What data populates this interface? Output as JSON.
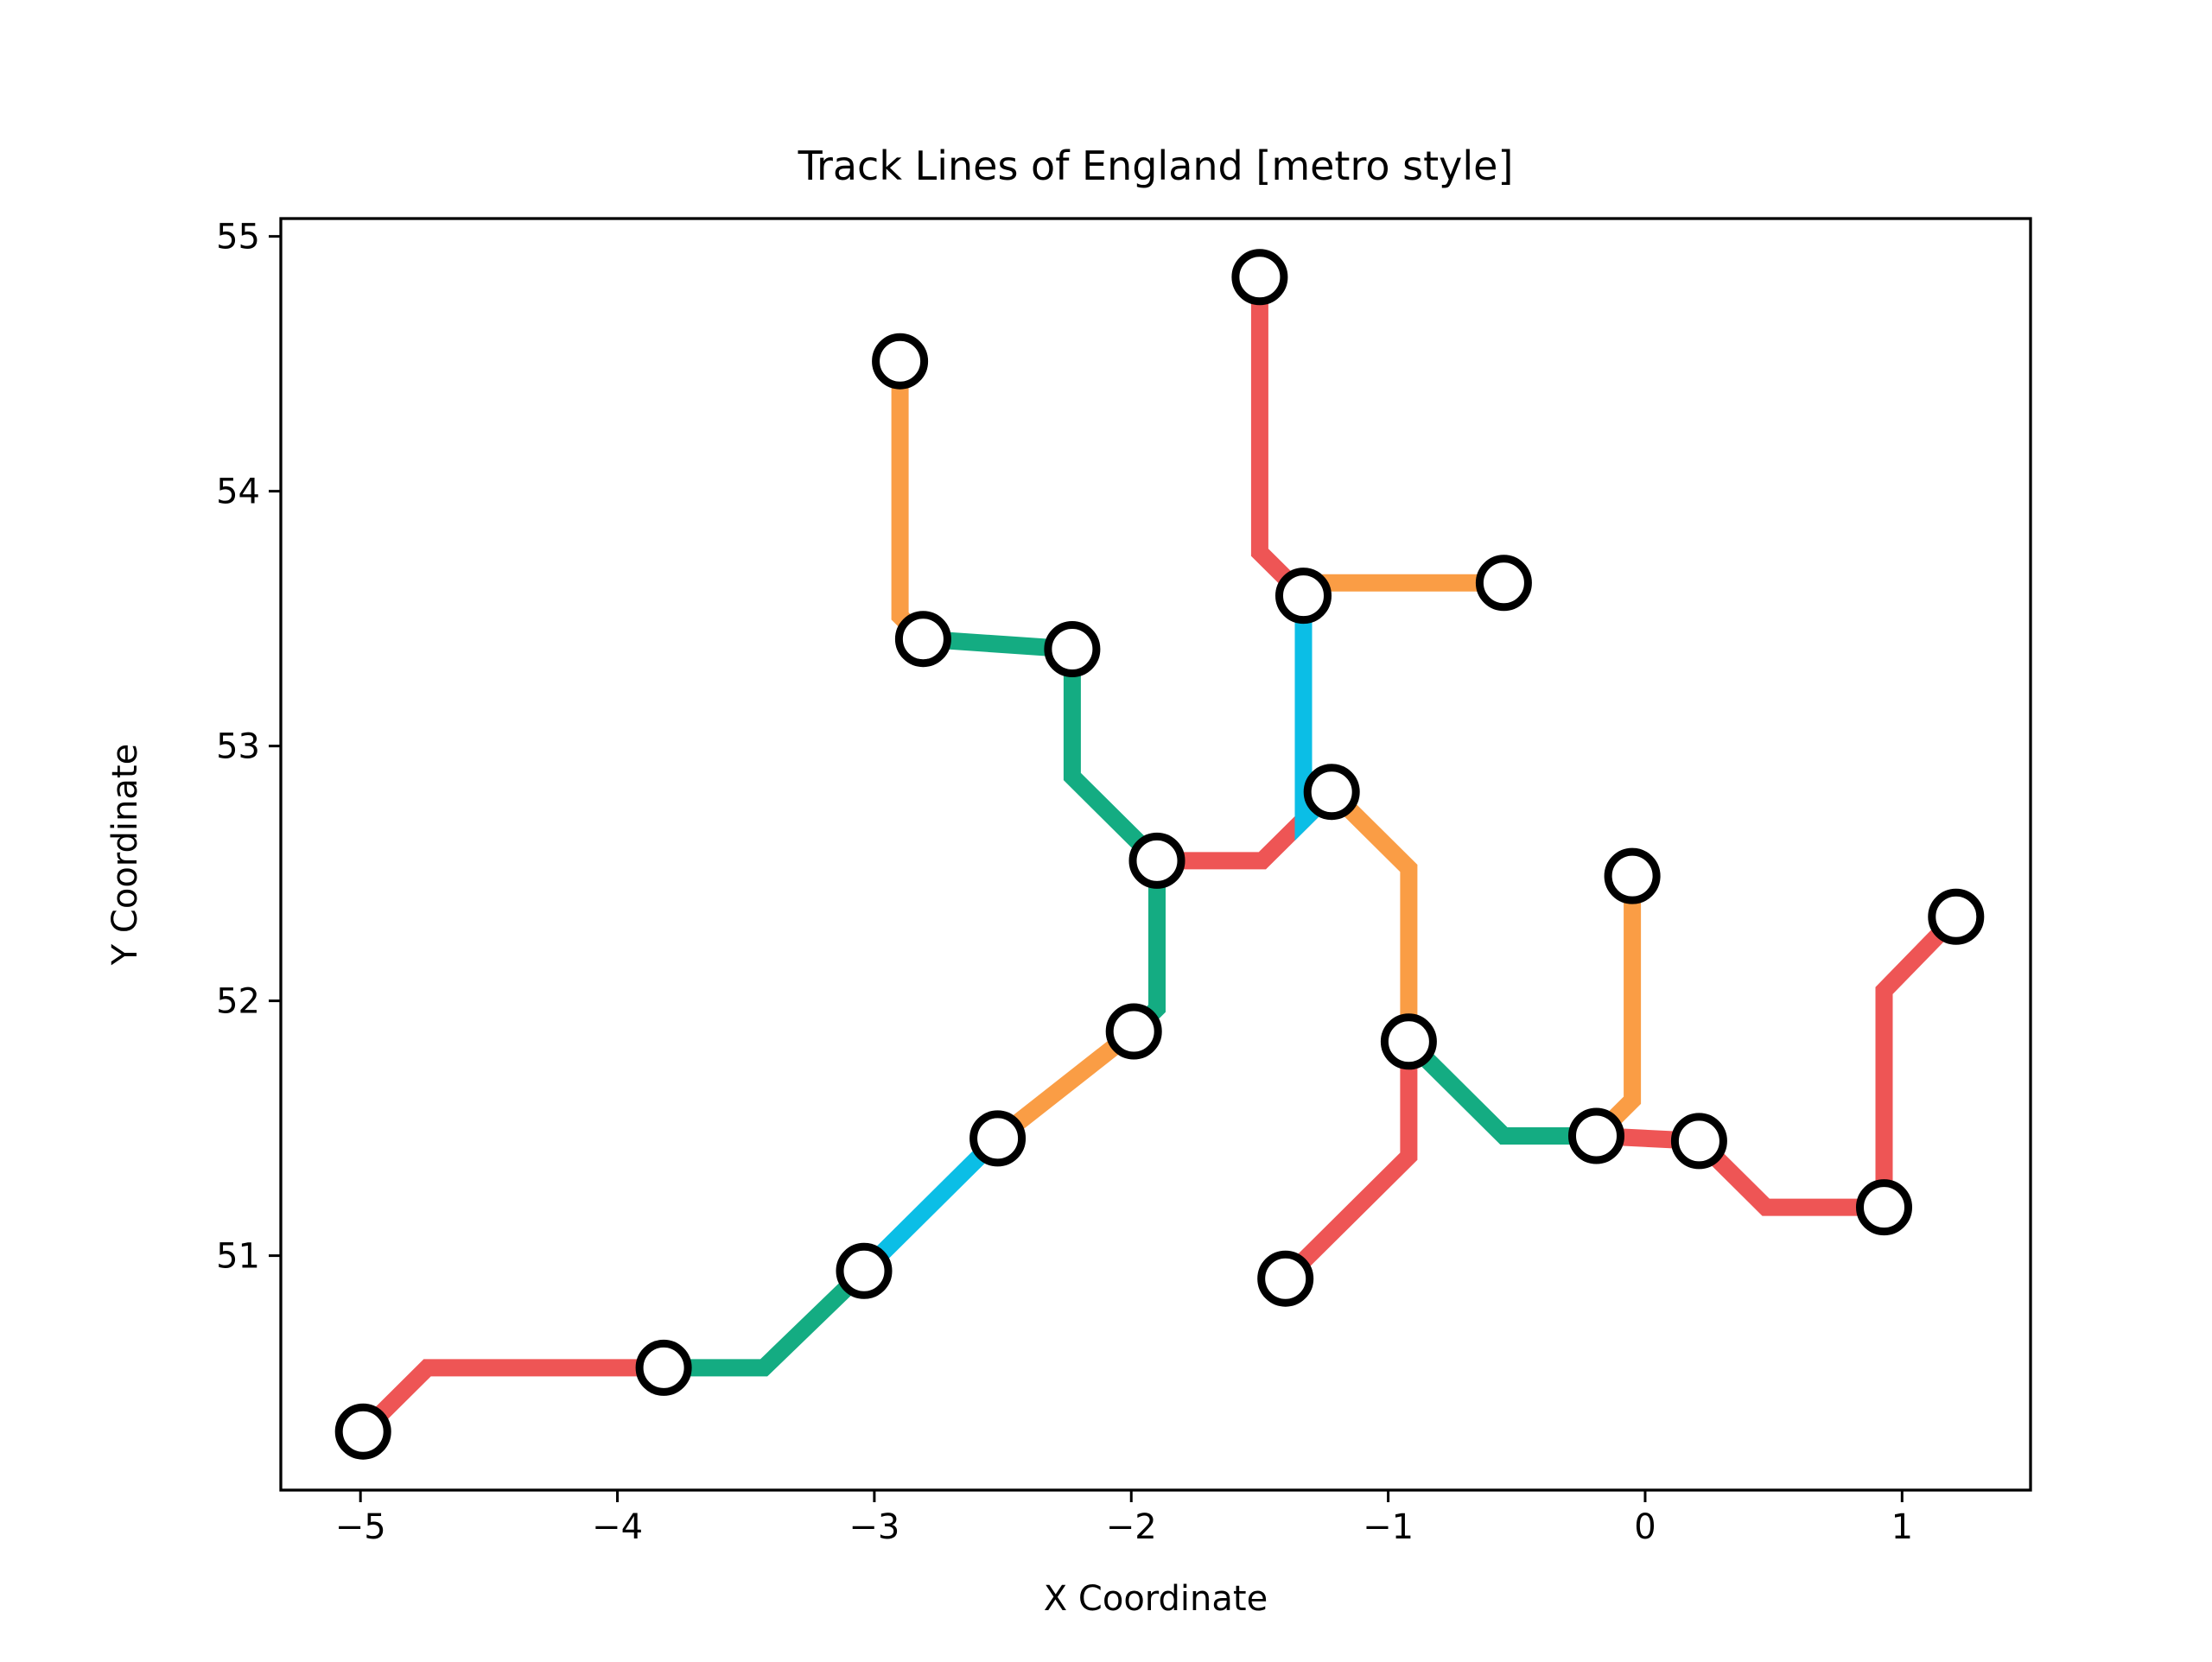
{
  "chart_data": {
    "type": "line",
    "title": "Track Lines of England [metro style]",
    "xlabel": "X Coordinate",
    "ylabel": "Y Coordinate",
    "xlim": [
      -5.31,
      1.5
    ],
    "ylim": [
      50.08,
      55.07
    ],
    "xticks": [
      -5,
      -4,
      -3,
      -2,
      -1,
      0,
      1
    ],
    "xtick_labels": [
      "−5",
      "−4",
      "−3",
      "−2",
      "−1",
      "0",
      "1"
    ],
    "yticks": [
      51,
      52,
      53,
      54,
      55
    ],
    "ytick_labels": [
      "51",
      "52",
      "53",
      "54",
      "55"
    ],
    "grid": false,
    "legend": "none",
    "colors": {
      "red": "#ee5555",
      "orange": "#fa9d45",
      "green": "#14ac82",
      "blue": "#0bbee6",
      "station_fill": "#ffffff",
      "station_edge": "#000000"
    },
    "series": [
      {
        "color": "red",
        "points": [
          [
            -4.99,
            50.31
          ],
          [
            -4.74,
            50.56
          ],
          [
            -3.82,
            50.56
          ]
        ]
      },
      {
        "color": "green",
        "points": [
          [
            -3.82,
            50.56
          ],
          [
            -3.43,
            50.56
          ],
          [
            -3.04,
            50.94
          ]
        ]
      },
      {
        "color": "blue",
        "points": [
          [
            -3.04,
            50.94
          ],
          [
            -2.52,
            51.46
          ]
        ]
      },
      {
        "color": "orange",
        "points": [
          [
            -2.52,
            51.46
          ],
          [
            -1.99,
            51.88
          ]
        ]
      },
      {
        "color": "green",
        "points": [
          [
            -1.99,
            51.88
          ],
          [
            -1.9,
            51.97
          ],
          [
            -1.9,
            52.55
          ]
        ]
      },
      {
        "color": "red",
        "points": [
          [
            -1.9,
            52.55
          ],
          [
            -1.49,
            52.55
          ],
          [
            -1.22,
            52.82
          ]
        ]
      },
      {
        "color": "green",
        "points": [
          [
            -1.9,
            52.55
          ],
          [
            -2.23,
            52.88
          ],
          [
            -2.23,
            53.38
          ]
        ]
      },
      {
        "color": "green",
        "points": [
          [
            -2.23,
            53.38
          ],
          [
            -2.81,
            53.42
          ]
        ]
      },
      {
        "color": "orange",
        "points": [
          [
            -2.81,
            53.42
          ],
          [
            -2.9,
            53.51
          ],
          [
            -2.9,
            54.51
          ]
        ]
      },
      {
        "color": "blue",
        "points": [
          [
            -1.22,
            52.82
          ],
          [
            -1.33,
            52.71
          ],
          [
            -1.33,
            53.59
          ]
        ]
      },
      {
        "color": "red",
        "points": [
          [
            -1.33,
            53.59
          ],
          [
            -1.5,
            53.76
          ],
          [
            -1.5,
            54.84
          ]
        ]
      },
      {
        "color": "orange",
        "points": [
          [
            -1.33,
            53.59
          ],
          [
            -1.29,
            53.64
          ],
          [
            -0.55,
            53.64
          ]
        ]
      },
      {
        "color": "orange",
        "points": [
          [
            -1.22,
            52.82
          ],
          [
            -0.92,
            52.52
          ],
          [
            -0.92,
            51.84
          ]
        ]
      },
      {
        "color": "red",
        "points": [
          [
            -0.92,
            51.84
          ],
          [
            -0.92,
            51.39
          ],
          [
            -1.4,
            50.91
          ]
        ]
      },
      {
        "color": "green",
        "points": [
          [
            -0.92,
            51.84
          ],
          [
            -0.55,
            51.47
          ],
          [
            -0.19,
            51.47
          ]
        ]
      },
      {
        "color": "orange",
        "points": [
          [
            -0.19,
            51.47
          ],
          [
            -0.05,
            51.61
          ],
          [
            -0.05,
            52.49
          ]
        ]
      },
      {
        "color": "red",
        "points": [
          [
            -0.19,
            51.47
          ],
          [
            0.21,
            51.45
          ],
          [
            0.47,
            51.19
          ],
          [
            0.93,
            51.19
          ]
        ]
      },
      {
        "color": "red",
        "points": [
          [
            0.93,
            51.19
          ],
          [
            0.93,
            52.04
          ],
          [
            1.21,
            52.33
          ]
        ]
      }
    ],
    "stations": [
      [
        -4.99,
        50.31
      ],
      [
        -3.82,
        50.56
      ],
      [
        -3.04,
        50.94
      ],
      [
        -2.52,
        51.46
      ],
      [
        -1.99,
        51.88
      ],
      [
        -1.9,
        52.55
      ],
      [
        -2.23,
        53.38
      ],
      [
        -2.81,
        53.42
      ],
      [
        -2.9,
        54.51
      ],
      [
        -1.5,
        54.84
      ],
      [
        -1.33,
        53.59
      ],
      [
        -0.55,
        53.64
      ],
      [
        -1.22,
        52.82
      ],
      [
        -0.92,
        51.84
      ],
      [
        -1.4,
        50.91
      ],
      [
        -0.19,
        51.47
      ],
      [
        -0.05,
        52.49
      ],
      [
        0.21,
        51.45
      ],
      [
        0.93,
        51.19
      ],
      [
        1.21,
        52.33
      ]
    ]
  }
}
